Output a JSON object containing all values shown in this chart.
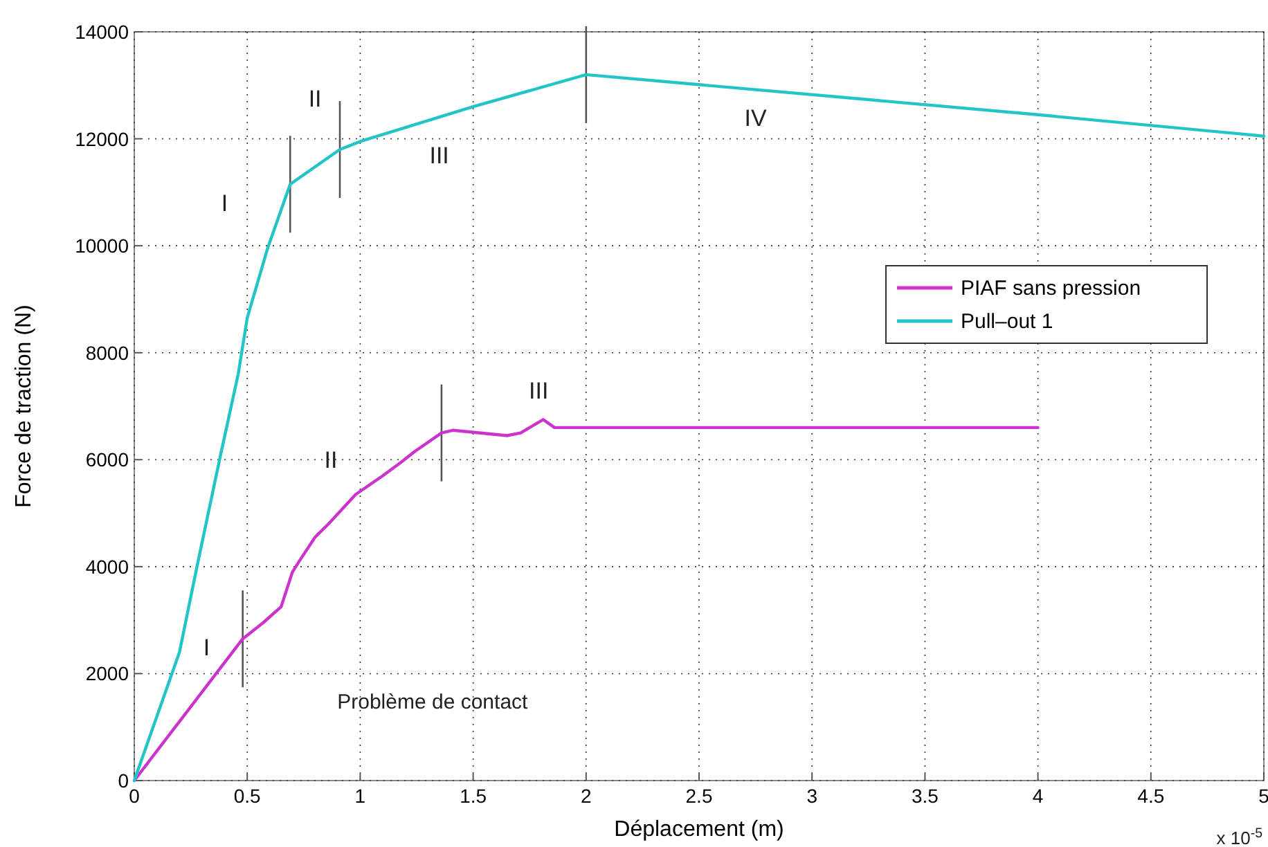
{
  "chart_data": {
    "type": "line",
    "xlabel": "Déplacement (m)",
    "ylabel": "Force de traction (N)",
    "xlim": [
      0,
      5
    ],
    "xticks": [
      0,
      0.5,
      1,
      1.5,
      2,
      2.5,
      3,
      3.5,
      4,
      4.5,
      5
    ],
    "ylim": [
      0,
      14000
    ],
    "yticks": [
      0,
      2000,
      4000,
      6000,
      8000,
      10000,
      12000,
      14000
    ],
    "grid": true,
    "legend": "right",
    "line_style": "solid",
    "series": [
      {
        "name": "PIAF sans pression",
        "color": "#cc33cc",
        "x": [
          0,
          0.48,
          0.57,
          0.65,
          0.7,
          0.73,
          0.8,
          0.86,
          0.98,
          1.1,
          1.18,
          1.24,
          1.36,
          1.41,
          1.65,
          1.71,
          1.81,
          1.86,
          4
        ],
        "values": [
          0,
          2650,
          2950,
          3250,
          3900,
          4100,
          4550,
          4800,
          5350,
          5700,
          5950,
          6150,
          6500,
          6550,
          6450,
          6500,
          6750,
          6600,
          6600
        ]
      },
      {
        "name": "Pull‒out 1",
        "color": "#22c4c8",
        "x": [
          0,
          0.2,
          0.28,
          0.38,
          0.46,
          0.5,
          0.59,
          0.69,
          0.91,
          1,
          1.5,
          2,
          4,
          5
        ],
        "values": [
          0,
          2400,
          4050,
          6050,
          7600,
          8650,
          9950,
          11150,
          11800,
          11950,
          12600,
          13200,
          12450,
          12050
        ]
      }
    ],
    "ref_lines": [
      {
        "axis": "x",
        "value": 0.48
      },
      {
        "axis": "x",
        "value": 1.36
      },
      {
        "axis": "x",
        "value": 0.69
      },
      {
        "axis": "x",
        "value": 0.91
      },
      {
        "axis": "x",
        "value": 2
      }
    ],
    "annotations": [
      "I",
      "II",
      "III",
      "IV",
      "I",
      "II",
      "III",
      "Problème de contact",
      "x 10$^{-5}$"
    ]
  }
}
